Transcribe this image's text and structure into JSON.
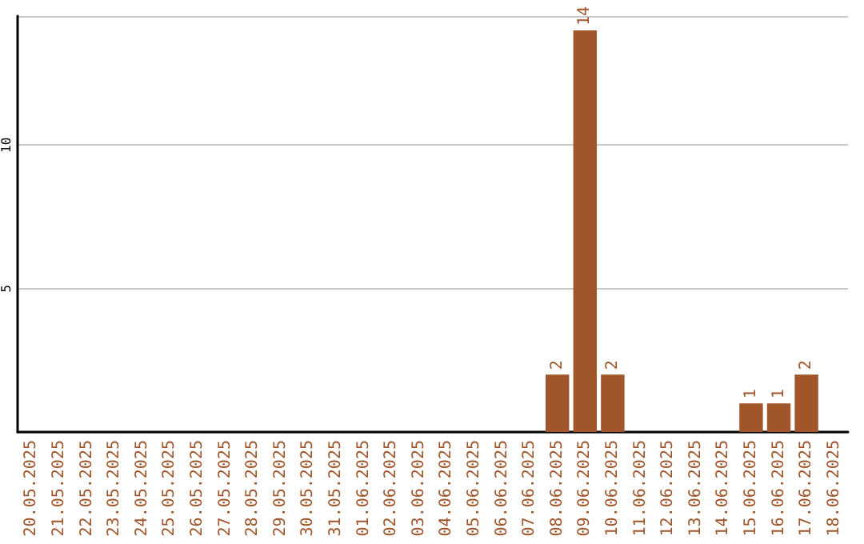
{
  "chart_data": {
    "type": "bar",
    "categories": [
      "20.05.2025",
      "21.05.2025",
      "22.05.2025",
      "23.05.2025",
      "24.05.2025",
      "25.05.2025",
      "26.05.2025",
      "27.05.2025",
      "28.05.2025",
      "29.05.2025",
      "30.05.2025",
      "31.05.2025",
      "01.06.2025",
      "02.06.2025",
      "03.06.2025",
      "04.06.2025",
      "05.06.2025",
      "06.06.2025",
      "07.06.2025",
      "08.06.2025",
      "09.06.2025",
      "10.06.2025",
      "11.06.2025",
      "12.06.2025",
      "13.06.2025",
      "14.06.2025",
      "15.06.2025",
      "16.06.2025",
      "17.06.2025",
      "18.06.2025"
    ],
    "values": [
      null,
      null,
      null,
      null,
      null,
      null,
      null,
      null,
      null,
      null,
      null,
      null,
      null,
      null,
      null,
      null,
      null,
      null,
      null,
      2,
      14,
      2,
      null,
      null,
      null,
      null,
      1,
      1,
      2,
      null
    ],
    "color": "#a0562a",
    "ylim": [
      0,
      14.5
    ],
    "yticks": [
      5,
      10
    ],
    "grid": "y",
    "data_labels": true
  }
}
